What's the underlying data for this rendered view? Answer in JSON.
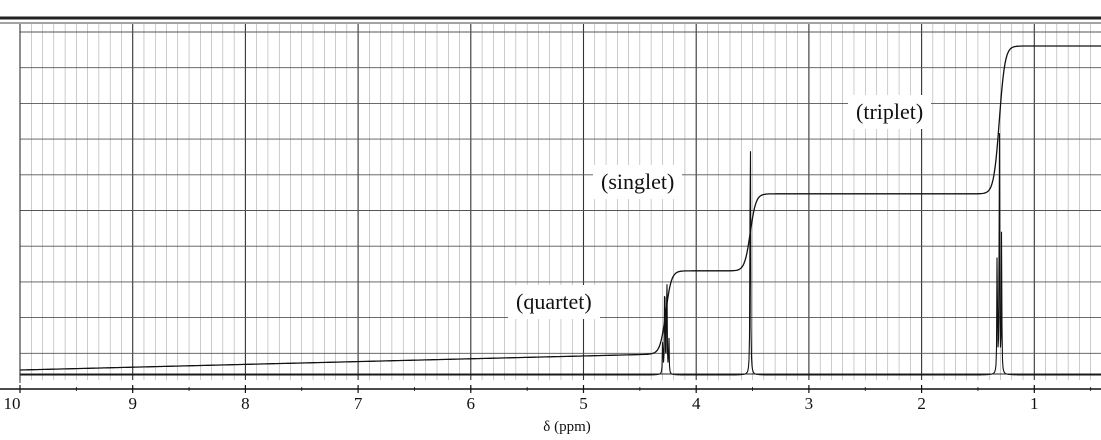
{
  "chart_data": {
    "type": "line",
    "title": "",
    "xlabel": "δ (ppm)",
    "ylabel": "",
    "xlim": [
      10,
      0.4
    ],
    "x_reversed": true,
    "ticks": [
      "10",
      "9",
      "8",
      "7",
      "6",
      "5",
      "4",
      "3",
      "2",
      "1"
    ],
    "tick_values": [
      10,
      9,
      8,
      7,
      6,
      5,
      4,
      3,
      2,
      1
    ],
    "grid": true,
    "series": [
      {
        "kind": "spectrum",
        "peaks": [
          {
            "center": 4.27,
            "multiplicity": "quartet",
            "rel_intensity": 0.39
          },
          {
            "center": 3.52,
            "multiplicity": "singlet",
            "rel_intensity": 1.0
          },
          {
            "center": 1.31,
            "multiplicity": "triplet",
            "rel_intensity": 0.86
          }
        ]
      },
      {
        "kind": "integral",
        "steps": [
          {
            "center": 4.27,
            "height_fraction": 0.27
          },
          {
            "center": 3.52,
            "height_fraction": 0.25
          },
          {
            "center": 1.31,
            "height_fraction": 0.48
          }
        ]
      }
    ],
    "annotations": [
      {
        "text": "(quartet)",
        "x": 4.8
      },
      {
        "text": "(singlet)",
        "x": 4.45
      },
      {
        "text": "(triplet)",
        "x": 1.9
      }
    ]
  }
}
